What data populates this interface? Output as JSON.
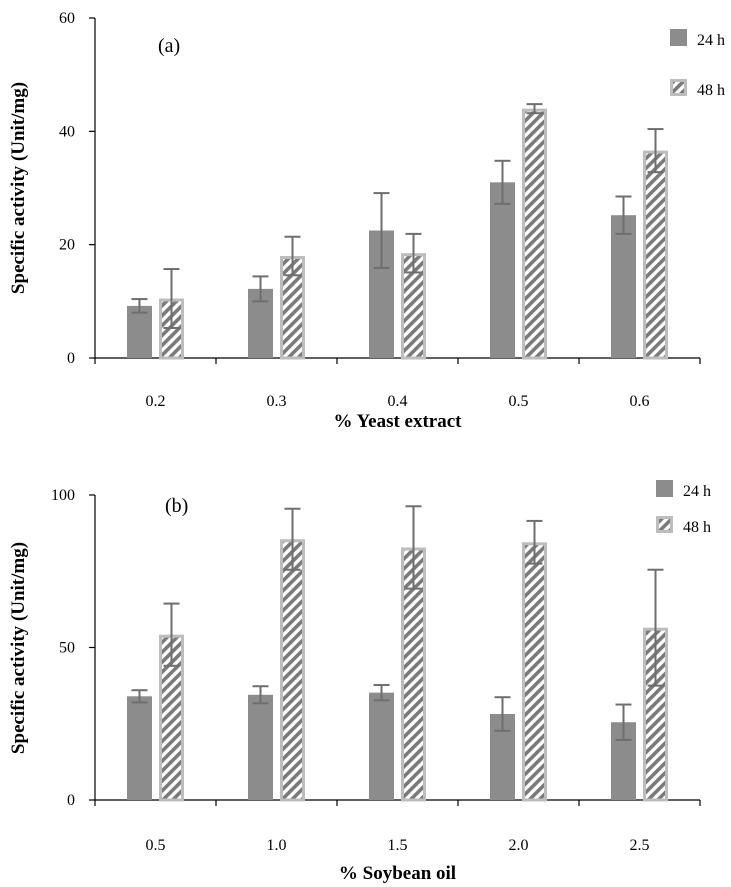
{
  "chart_data": [
    {
      "type": "bar",
      "panel_label": "(a)",
      "xlabel": "% Yeast extract",
      "ylabel": "Specific activity (Unit/mg)",
      "categories": [
        "0.2",
        "0.3",
        "0.4",
        "0.5",
        "0.6"
      ],
      "ylim": [
        0,
        60
      ],
      "yticks": [
        "0",
        "20",
        "40",
        "60"
      ],
      "grid": false,
      "legend_position": "top-right",
      "series": [
        {
          "name": "24 h",
          "style": "solid",
          "color": "#8c8c8c",
          "values": [
            9.2,
            12.2,
            22.5,
            31.0,
            25.2
          ],
          "errors": [
            1.2,
            2.2,
            6.6,
            3.8,
            3.3
          ]
        },
        {
          "name": "48 h",
          "style": "hatched",
          "color": "#8c8c8c",
          "values": [
            10.5,
            18.0,
            18.5,
            44.0,
            36.6
          ],
          "errors": [
            5.2,
            3.4,
            3.4,
            0.8,
            3.8
          ]
        }
      ]
    },
    {
      "type": "bar",
      "panel_label": "(b)",
      "xlabel": "% Soybean oil",
      "ylabel": "Specific activity (Unit/mg)",
      "categories": [
        "0.5",
        "1.0",
        "1.5",
        "2.0",
        "2.5"
      ],
      "ylim": [
        0,
        100
      ],
      "yticks": [
        "0",
        "50",
        "100"
      ],
      "grid": false,
      "legend_position": "top-right",
      "series": [
        {
          "name": "24 h",
          "style": "solid",
          "color": "#8c8c8c",
          "values": [
            34.0,
            34.5,
            35.2,
            28.2,
            25.5
          ],
          "errors": [
            2.0,
            2.8,
            2.5,
            5.5,
            5.8
          ]
        },
        {
          "name": "48 h",
          "style": "hatched",
          "color": "#8c8c8c",
          "values": [
            54.2,
            85.5,
            82.8,
            84.5,
            56.5
          ],
          "errors": [
            10.2,
            10.0,
            13.5,
            7.0,
            19.0
          ]
        }
      ]
    }
  ]
}
